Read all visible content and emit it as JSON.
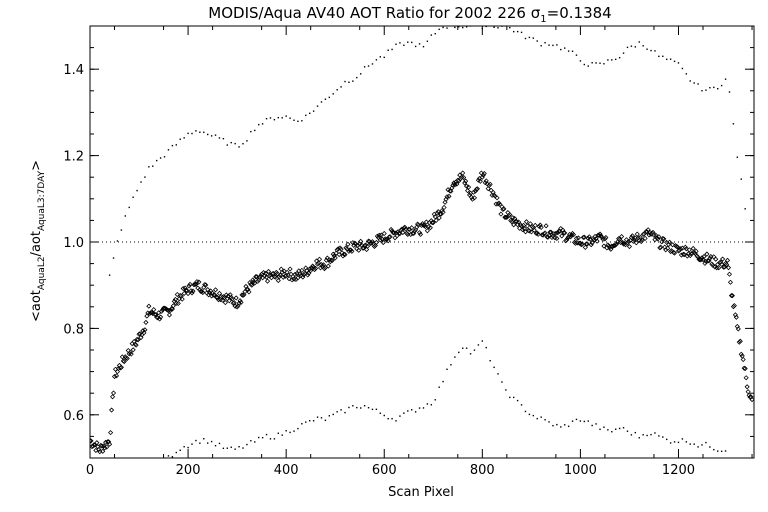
{
  "chart_data": {
    "type": "scatter",
    "title_main": "MODIS/Aqua AV40 AOT Ratio for 2002 226 ",
    "title_sigma": "σ",
    "title_sigma_sub": "1",
    "title_value": "=0.1384",
    "xlabel": "Scan Pixel",
    "ylabel_open": "<aot",
    "ylabel_sub1": "AquaL2",
    "ylabel_mid": "/aot",
    "ylabel_sub2": "AquaL3:7DAY",
    "ylabel_close": ">",
    "xlim": [
      0,
      1354
    ],
    "ylim": [
      0.5,
      1.5
    ],
    "xticks": [
      0,
      200,
      400,
      600,
      800,
      1000,
      1200
    ],
    "xtick_labels": [
      "0",
      "200",
      "400",
      "600",
      "800",
      "1000",
      "1200"
    ],
    "yticks": [
      0.6,
      0.8,
      1.0,
      1.2,
      1.4
    ],
    "ytick_labels": [
      "0.6",
      "0.8",
      "1.0",
      "1.2",
      "1.4"
    ],
    "reference_line": 1.0,
    "series": [
      {
        "role": "mean",
        "points": [
          [
            0,
            0.54
          ],
          [
            20,
            0.52
          ],
          [
            40,
            0.54
          ],
          [
            50,
            0.69
          ],
          [
            70,
            0.73
          ],
          [
            90,
            0.76
          ],
          [
            110,
            0.8
          ],
          [
            120,
            0.84
          ],
          [
            140,
            0.83
          ],
          [
            160,
            0.84
          ],
          [
            180,
            0.87
          ],
          [
            200,
            0.89
          ],
          [
            220,
            0.9
          ],
          [
            240,
            0.89
          ],
          [
            260,
            0.88
          ],
          [
            280,
            0.87
          ],
          [
            300,
            0.86
          ],
          [
            320,
            0.89
          ],
          [
            340,
            0.91
          ],
          [
            360,
            0.92
          ],
          [
            380,
            0.92
          ],
          [
            400,
            0.93
          ],
          [
            420,
            0.92
          ],
          [
            440,
            0.93
          ],
          [
            460,
            0.95
          ],
          [
            480,
            0.95
          ],
          [
            500,
            0.97
          ],
          [
            520,
            0.98
          ],
          [
            540,
            0.99
          ],
          [
            560,
            0.99
          ],
          [
            580,
            1.0
          ],
          [
            600,
            1.01
          ],
          [
            620,
            1.02
          ],
          [
            640,
            1.03
          ],
          [
            660,
            1.03
          ],
          [
            680,
            1.03
          ],
          [
            700,
            1.05
          ],
          [
            720,
            1.08
          ],
          [
            740,
            1.14
          ],
          [
            760,
            1.15
          ],
          [
            780,
            1.1
          ],
          [
            800,
            1.16
          ],
          [
            820,
            1.12
          ],
          [
            840,
            1.07
          ],
          [
            860,
            1.05
          ],
          [
            880,
            1.04
          ],
          [
            900,
            1.03
          ],
          [
            920,
            1.03
          ],
          [
            940,
            1.02
          ],
          [
            960,
            1.02
          ],
          [
            980,
            1.01
          ],
          [
            1000,
            1.0
          ],
          [
            1020,
            1.0
          ],
          [
            1040,
            1.01
          ],
          [
            1060,
            0.99
          ],
          [
            1080,
            1.01
          ],
          [
            1100,
            1.0
          ],
          [
            1120,
            1.01
          ],
          [
            1140,
            1.02
          ],
          [
            1160,
            1.0
          ],
          [
            1180,
            0.99
          ],
          [
            1200,
            0.98
          ],
          [
            1220,
            0.98
          ],
          [
            1240,
            0.97
          ],
          [
            1260,
            0.96
          ],
          [
            1280,
            0.95
          ],
          [
            1300,
            0.95
          ],
          [
            1310,
            0.87
          ],
          [
            1320,
            0.8
          ],
          [
            1330,
            0.74
          ],
          [
            1340,
            0.67
          ],
          [
            1350,
            0.63
          ]
        ]
      },
      {
        "role": "upper",
        "points": [
          [
            40,
            0.92
          ],
          [
            60,
            1.02
          ],
          [
            80,
            1.08
          ],
          [
            100,
            1.13
          ],
          [
            120,
            1.17
          ],
          [
            140,
            1.19
          ],
          [
            160,
            1.21
          ],
          [
            180,
            1.23
          ],
          [
            200,
            1.25
          ],
          [
            220,
            1.26
          ],
          [
            240,
            1.25
          ],
          [
            260,
            1.24
          ],
          [
            280,
            1.23
          ],
          [
            300,
            1.22
          ],
          [
            320,
            1.24
          ],
          [
            340,
            1.27
          ],
          [
            360,
            1.28
          ],
          [
            380,
            1.29
          ],
          [
            400,
            1.29
          ],
          [
            420,
            1.28
          ],
          [
            440,
            1.29
          ],
          [
            460,
            1.31
          ],
          [
            480,
            1.33
          ],
          [
            500,
            1.35
          ],
          [
            520,
            1.37
          ],
          [
            540,
            1.38
          ],
          [
            560,
            1.4
          ],
          [
            580,
            1.42
          ],
          [
            600,
            1.43
          ],
          [
            620,
            1.45
          ],
          [
            640,
            1.46
          ],
          [
            660,
            1.46
          ],
          [
            680,
            1.45
          ],
          [
            700,
            1.48
          ],
          [
            720,
            1.5
          ],
          [
            850,
            1.5
          ],
          [
            880,
            1.48
          ],
          [
            900,
            1.47
          ],
          [
            920,
            1.46
          ],
          [
            940,
            1.46
          ],
          [
            960,
            1.45
          ],
          [
            980,
            1.44
          ],
          [
            1000,
            1.42
          ],
          [
            1020,
            1.41
          ],
          [
            1040,
            1.41
          ],
          [
            1060,
            1.42
          ],
          [
            1080,
            1.43
          ],
          [
            1100,
            1.45
          ],
          [
            1120,
            1.46
          ],
          [
            1140,
            1.45
          ],
          [
            1160,
            1.43
          ],
          [
            1180,
            1.42
          ],
          [
            1200,
            1.41
          ],
          [
            1220,
            1.38
          ],
          [
            1240,
            1.36
          ],
          [
            1260,
            1.35
          ],
          [
            1280,
            1.36
          ],
          [
            1300,
            1.38
          ],
          [
            1320,
            1.2
          ],
          [
            1340,
            1.05
          ]
        ]
      },
      {
        "role": "lower",
        "points": [
          [
            160,
            0.5
          ],
          [
            180,
            0.52
          ],
          [
            200,
            0.53
          ],
          [
            220,
            0.54
          ],
          [
            240,
            0.54
          ],
          [
            260,
            0.53
          ],
          [
            280,
            0.52
          ],
          [
            300,
            0.52
          ],
          [
            320,
            0.53
          ],
          [
            340,
            0.54
          ],
          [
            360,
            0.55
          ],
          [
            380,
            0.55
          ],
          [
            400,
            0.56
          ],
          [
            420,
            0.57
          ],
          [
            440,
            0.58
          ],
          [
            460,
            0.59
          ],
          [
            480,
            0.59
          ],
          [
            500,
            0.6
          ],
          [
            520,
            0.61
          ],
          [
            540,
            0.62
          ],
          [
            560,
            0.62
          ],
          [
            580,
            0.61
          ],
          [
            600,
            0.6
          ],
          [
            620,
            0.59
          ],
          [
            640,
            0.6
          ],
          [
            660,
            0.61
          ],
          [
            680,
            0.62
          ],
          [
            700,
            0.63
          ],
          [
            720,
            0.68
          ],
          [
            740,
            0.73
          ],
          [
            760,
            0.76
          ],
          [
            780,
            0.74
          ],
          [
            800,
            0.77
          ],
          [
            820,
            0.72
          ],
          [
            840,
            0.67
          ],
          [
            860,
            0.64
          ],
          [
            880,
            0.62
          ],
          [
            900,
            0.6
          ],
          [
            920,
            0.59
          ],
          [
            940,
            0.58
          ],
          [
            960,
            0.57
          ],
          [
            980,
            0.58
          ],
          [
            1000,
            0.59
          ],
          [
            1020,
            0.58
          ],
          [
            1040,
            0.57
          ],
          [
            1060,
            0.56
          ],
          [
            1080,
            0.57
          ],
          [
            1100,
            0.56
          ],
          [
            1120,
            0.55
          ],
          [
            1140,
            0.56
          ],
          [
            1160,
            0.55
          ],
          [
            1180,
            0.54
          ],
          [
            1200,
            0.54
          ],
          [
            1220,
            0.54
          ],
          [
            1240,
            0.53
          ],
          [
            1260,
            0.53
          ],
          [
            1280,
            0.52
          ],
          [
            1300,
            0.52
          ]
        ]
      }
    ]
  }
}
